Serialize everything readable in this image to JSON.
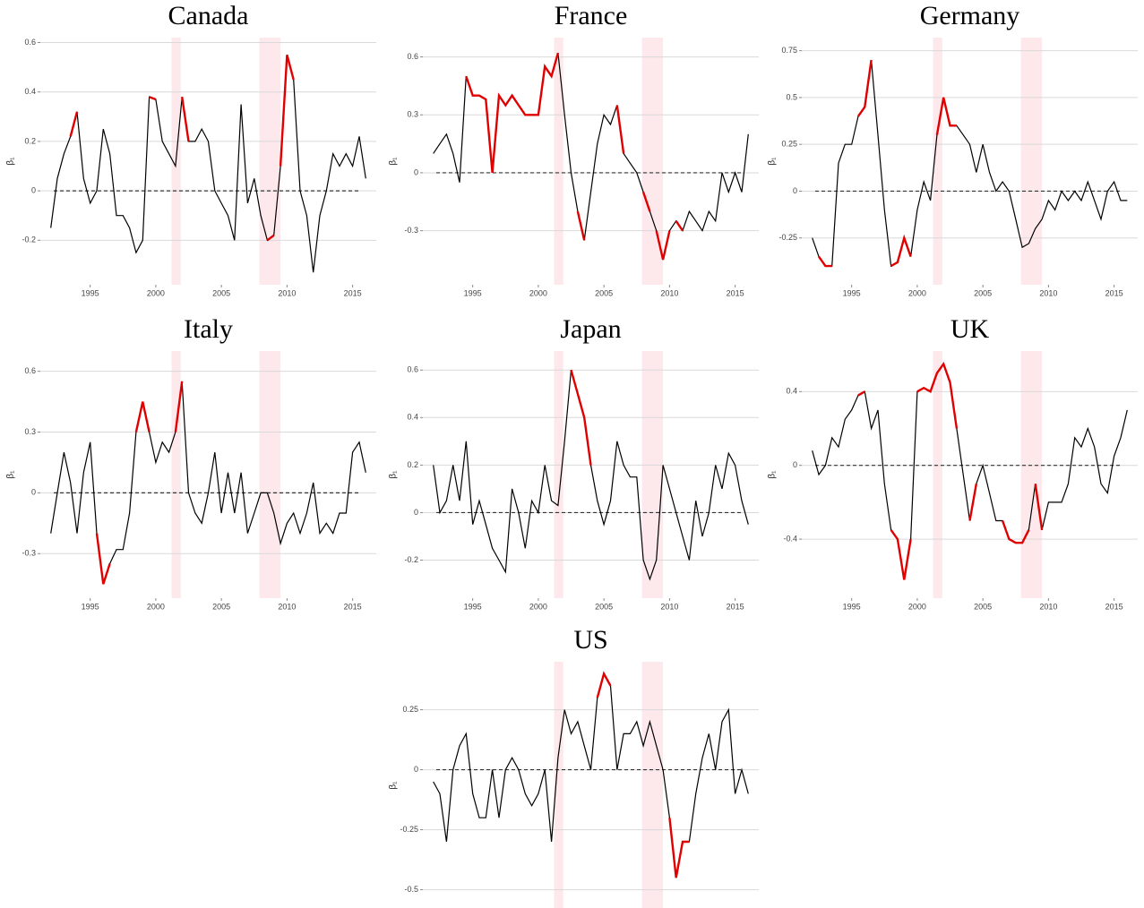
{
  "chart_data": [
    {
      "type": "line",
      "title": "Canada",
      "y_label": "β₁",
      "color": "#000000",
      "highlight_color": "#e00000",
      "shade_color": "#fde8ec",
      "grid": true,
      "hline": 0,
      "xlim": [
        1991.2,
        2016.8
      ],
      "xticks": [
        1995,
        2000,
        2005,
        2010,
        2015
      ],
      "ylim": [
        -0.38,
        0.62
      ],
      "yticks": [
        -0.2,
        0.0,
        0.2,
        0.4,
        0.6
      ],
      "shaded": [
        [
          2001.2,
          2001.9
        ],
        [
          2007.9,
          2009.5
        ]
      ],
      "highlight_ranges": [
        [
          1993.5,
          1994
        ],
        [
          1999.5,
          2000
        ],
        [
          2002,
          2002.5
        ],
        [
          2008.5,
          2009
        ],
        [
          2009.5,
          2010.5
        ]
      ],
      "x": [
        1992,
        1992.5,
        1993,
        1993.5,
        1994,
        1994.5,
        1995,
        1995.5,
        1996,
        1996.5,
        1997,
        1997.5,
        1998,
        1998.5,
        1999,
        1999.5,
        2000,
        2000.5,
        2001,
        2001.5,
        2002,
        2002.5,
        2003,
        2003.5,
        2004,
        2004.5,
        2005,
        2005.5,
        2006,
        2006.5,
        2007,
        2007.5,
        2008,
        2008.5,
        2009,
        2009.5,
        2010,
        2010.5,
        2011,
        2011.5,
        2012,
        2012.5,
        2013,
        2013.5,
        2014,
        2014.5,
        2015,
        2015.5,
        2016
      ],
      "values": [
        -0.15,
        0.05,
        0.15,
        0.22,
        0.32,
        0.05,
        -0.05,
        0.0,
        0.25,
        0.15,
        -0.1,
        -0.1,
        -0.15,
        -0.25,
        -0.2,
        0.38,
        0.37,
        0.2,
        0.15,
        0.1,
        0.38,
        0.2,
        0.2,
        0.25,
        0.2,
        0.0,
        -0.05,
        -0.1,
        -0.2,
        0.35,
        -0.05,
        0.05,
        -0.1,
        -0.2,
        -0.18,
        0.1,
        0.55,
        0.45,
        0.0,
        -0.1,
        -0.33,
        -0.1,
        0.0,
        0.15,
        0.1,
        0.15,
        0.1,
        0.22,
        0.05
      ]
    },
    {
      "type": "line",
      "title": "France",
      "y_label": "β₁",
      "color": "#000000",
      "highlight_color": "#e00000",
      "shade_color": "#fde8ec",
      "grid": true,
      "hline": 0,
      "xlim": [
        1991.2,
        2016.8
      ],
      "xticks": [
        1995,
        2000,
        2005,
        2010,
        2015
      ],
      "ylim": [
        -0.58,
        0.7
      ],
      "yticks": [
        -0.3,
        0.0,
        0.3,
        0.6
      ],
      "shaded": [
        [
          2001.2,
          2001.9
        ],
        [
          2007.9,
          2009.5
        ]
      ],
      "highlight_ranges": [
        [
          1994.5,
          2001.5
        ],
        [
          2003,
          2003.5
        ],
        [
          2006,
          2006.5
        ],
        [
          2008,
          2008.5
        ],
        [
          2009,
          2010
        ],
        [
          2010.5,
          2011
        ]
      ],
      "x": [
        1992,
        1992.5,
        1993,
        1993.5,
        1994,
        1994.5,
        1995,
        1995.5,
        1996,
        1996.5,
        1997,
        1997.5,
        1998,
        1998.5,
        1999,
        1999.5,
        2000,
        2000.5,
        2001,
        2001.5,
        2002,
        2002.5,
        2003,
        2003.5,
        2004,
        2004.5,
        2005,
        2005.5,
        2006,
        2006.5,
        2007,
        2007.5,
        2008,
        2008.5,
        2009,
        2009.5,
        2010,
        2010.5,
        2011,
        2011.5,
        2012,
        2012.5,
        2013,
        2013.5,
        2014,
        2014.5,
        2015,
        2015.5,
        2016
      ],
      "values": [
        0.1,
        0.15,
        0.2,
        0.1,
        -0.05,
        0.5,
        0.4,
        0.4,
        0.38,
        0.0,
        0.4,
        0.35,
        0.4,
        0.35,
        0.3,
        0.3,
        0.3,
        0.55,
        0.5,
        0.62,
        0.3,
        0.0,
        -0.2,
        -0.35,
        -0.1,
        0.15,
        0.3,
        0.25,
        0.35,
        0.1,
        0.05,
        0.0,
        -0.1,
        -0.2,
        -0.3,
        -0.45,
        -0.3,
        -0.25,
        -0.3,
        -0.2,
        -0.25,
        -0.3,
        -0.2,
        -0.25,
        0.0,
        -0.1,
        0.0,
        -0.1,
        0.2
      ]
    },
    {
      "type": "line",
      "title": "Germany",
      "y_label": "β₁",
      "color": "#000000",
      "highlight_color": "#e00000",
      "shade_color": "#fde8ec",
      "grid": true,
      "hline": 0,
      "xlim": [
        1991.2,
        2016.8
      ],
      "xticks": [
        1995,
        2000,
        2005,
        2010,
        2015
      ],
      "ylim": [
        -0.5,
        0.82
      ],
      "yticks": [
        -0.25,
        0.0,
        0.25,
        0.5,
        0.75
      ],
      "shaded": [
        [
          2001.2,
          2001.9
        ],
        [
          2007.9,
          2009.5
        ]
      ],
      "highlight_ranges": [
        [
          1992.5,
          1993.5
        ],
        [
          1995.5,
          1996.5
        ],
        [
          1998,
          1999.5
        ],
        [
          2001.5,
          2003
        ]
      ],
      "x": [
        1992,
        1992.5,
        1993,
        1993.5,
        1994,
        1994.5,
        1995,
        1995.5,
        1996,
        1996.5,
        1997,
        1997.5,
        1998,
        1998.5,
        1999,
        1999.5,
        2000,
        2000.5,
        2001,
        2001.5,
        2002,
        2002.5,
        2003,
        2003.5,
        2004,
        2004.5,
        2005,
        2005.5,
        2006,
        2006.5,
        2007,
        2007.5,
        2008,
        2008.5,
        2009,
        2009.5,
        2010,
        2010.5,
        2011,
        2011.5,
        2012,
        2012.5,
        2013,
        2013.5,
        2014,
        2014.5,
        2015,
        2015.5,
        2016
      ],
      "values": [
        -0.25,
        -0.35,
        -0.4,
        -0.4,
        0.15,
        0.25,
        0.25,
        0.4,
        0.45,
        0.7,
        0.3,
        -0.1,
        -0.4,
        -0.38,
        -0.25,
        -0.35,
        -0.1,
        0.05,
        -0.05,
        0.3,
        0.5,
        0.35,
        0.35,
        0.3,
        0.25,
        0.1,
        0.25,
        0.1,
        0.0,
        0.05,
        0.0,
        -0.15,
        -0.3,
        -0.28,
        -0.2,
        -0.15,
        -0.05,
        -0.1,
        0.0,
        -0.05,
        0.0,
        -0.05,
        0.05,
        -0.05,
        -0.15,
        0.0,
        0.05,
        -0.05,
        -0.05
      ]
    },
    {
      "type": "line",
      "title": "Italy",
      "y_label": "β₁",
      "color": "#000000",
      "highlight_color": "#e00000",
      "shade_color": "#fde8ec",
      "grid": true,
      "hline": 0,
      "xlim": [
        1991.2,
        2016.8
      ],
      "xticks": [
        1995,
        2000,
        2005,
        2010,
        2015
      ],
      "ylim": [
        -0.52,
        0.7
      ],
      "yticks": [
        -0.3,
        0.0,
        0.3,
        0.6
      ],
      "shaded": [
        [
          2001.2,
          2001.9
        ],
        [
          2007.9,
          2009.5
        ]
      ],
      "highlight_ranges": [
        [
          1995.5,
          1996.5
        ],
        [
          1998.5,
          1999.5
        ],
        [
          2001.5,
          2002
        ]
      ],
      "x": [
        1992,
        1992.5,
        1993,
        1993.5,
        1994,
        1994.5,
        1995,
        1995.5,
        1996,
        1996.5,
        1997,
        1997.5,
        1998,
        1998.5,
        1999,
        1999.5,
        2000,
        2000.5,
        2001,
        2001.5,
        2002,
        2002.5,
        2003,
        2003.5,
        2004,
        2004.5,
        2005,
        2005.5,
        2006,
        2006.5,
        2007,
        2007.5,
        2008,
        2008.5,
        2009,
        2009.5,
        2010,
        2010.5,
        2011,
        2011.5,
        2012,
        2012.5,
        2013,
        2013.5,
        2014,
        2014.5,
        2015,
        2015.5,
        2016
      ],
      "values": [
        -0.2,
        0.0,
        0.2,
        0.05,
        -0.2,
        0.1,
        0.25,
        -0.2,
        -0.45,
        -0.35,
        -0.28,
        -0.28,
        -0.1,
        0.3,
        0.45,
        0.3,
        0.15,
        0.25,
        0.2,
        0.3,
        0.55,
        0.0,
        -0.1,
        -0.15,
        0.0,
        0.2,
        -0.1,
        0.1,
        -0.1,
        0.1,
        -0.2,
        -0.1,
        0.0,
        0.0,
        -0.1,
        -0.25,
        -0.15,
        -0.1,
        -0.2,
        -0.1,
        0.05,
        -0.2,
        -0.15,
        -0.2,
        -0.1,
        -0.1,
        0.2,
        0.25,
        0.1
      ]
    },
    {
      "type": "line",
      "title": "Japan",
      "y_label": "β₁",
      "color": "#000000",
      "highlight_color": "#e00000",
      "shade_color": "#fde8ec",
      "grid": true,
      "hline": 0,
      "xlim": [
        1991.2,
        2016.8
      ],
      "xticks": [
        1995,
        2000,
        2005,
        2010,
        2015
      ],
      "ylim": [
        -0.36,
        0.68
      ],
      "yticks": [
        -0.2,
        0.0,
        0.2,
        0.4,
        0.6
      ],
      "shaded": [
        [
          2001.2,
          2001.9
        ],
        [
          2007.9,
          2009.5
        ]
      ],
      "highlight_ranges": [
        [
          2002.5,
          2004
        ]
      ],
      "x": [
        1992,
        1992.5,
        1993,
        1993.5,
        1994,
        1994.5,
        1995,
        1995.5,
        1996,
        1996.5,
        1997,
        1997.5,
        1998,
        1998.5,
        1999,
        1999.5,
        2000,
        2000.5,
        2001,
        2001.5,
        2002,
        2002.5,
        2003,
        2003.5,
        2004,
        2004.5,
        2005,
        2005.5,
        2006,
        2006.5,
        2007,
        2007.5,
        2008,
        2008.5,
        2009,
        2009.5,
        2010,
        2010.5,
        2011,
        2011.5,
        2012,
        2012.5,
        2013,
        2013.5,
        2014,
        2014.5,
        2015,
        2015.5,
        2016
      ],
      "values": [
        0.2,
        0.0,
        0.05,
        0.2,
        0.05,
        0.3,
        -0.05,
        0.05,
        -0.05,
        -0.15,
        -0.2,
        -0.25,
        0.1,
        0.0,
        -0.15,
        0.05,
        0.0,
        0.2,
        0.05,
        0.03,
        0.3,
        0.6,
        0.5,
        0.4,
        0.2,
        0.05,
        -0.05,
        0.05,
        0.3,
        0.2,
        0.15,
        0.15,
        -0.2,
        -0.28,
        -0.2,
        0.2,
        0.1,
        0.0,
        -0.1,
        -0.2,
        0.05,
        -0.1,
        0.0,
        0.2,
        0.1,
        0.25,
        0.2,
        0.05,
        -0.05
      ]
    },
    {
      "type": "line",
      "title": "UK",
      "y_label": "β₁",
      "color": "#000000",
      "highlight_color": "#e00000",
      "shade_color": "#fde8ec",
      "grid": true,
      "hline": 0,
      "xlim": [
        1991.2,
        2016.8
      ],
      "xticks": [
        1995,
        2000,
        2005,
        2010,
        2015
      ],
      "ylim": [
        -0.72,
        0.62
      ],
      "yticks": [
        -0.4,
        0.0,
        0.4
      ],
      "shaded": [
        [
          2001.2,
          2001.9
        ],
        [
          2007.9,
          2009.5
        ]
      ],
      "highlight_ranges": [
        [
          1995.5,
          1996
        ],
        [
          1998,
          1999.5
        ],
        [
          2000,
          2003
        ],
        [
          2004,
          2004.5
        ],
        [
          2006.5,
          2008.5
        ],
        [
          2009,
          2009.5
        ]
      ],
      "x": [
        1992,
        1992.5,
        1993,
        1993.5,
        1994,
        1994.5,
        1995,
        1995.5,
        1996,
        1996.5,
        1997,
        1997.5,
        1998,
        1998.5,
        1999,
        1999.5,
        2000,
        2000.5,
        2001,
        2001.5,
        2002,
        2002.5,
        2003,
        2003.5,
        2004,
        2004.5,
        2005,
        2005.5,
        2006,
        2006.5,
        2007,
        2007.5,
        2008,
        2008.5,
        2009,
        2009.5,
        2010,
        2010.5,
        2011,
        2011.5,
        2012,
        2012.5,
        2013,
        2013.5,
        2014,
        2014.5,
        2015,
        2015.5,
        2016
      ],
      "values": [
        0.08,
        -0.05,
        0.0,
        0.15,
        0.1,
        0.25,
        0.3,
        0.38,
        0.4,
        0.2,
        0.3,
        -0.1,
        -0.35,
        -0.4,
        -0.62,
        -0.4,
        0.4,
        0.42,
        0.4,
        0.5,
        0.55,
        0.45,
        0.2,
        -0.05,
        -0.3,
        -0.1,
        0.0,
        -0.15,
        -0.3,
        -0.3,
        -0.4,
        -0.42,
        -0.42,
        -0.35,
        -0.1,
        -0.35,
        -0.2,
        -0.2,
        -0.2,
        -0.1,
        0.15,
        0.1,
        0.2,
        0.1,
        -0.1,
        -0.15,
        0.05,
        0.15,
        0.3
      ]
    },
    {
      "type": "line",
      "title": "US",
      "y_label": "β₁",
      "color": "#000000",
      "highlight_color": "#e00000",
      "shade_color": "#fde8ec",
      "grid": true,
      "hline": 0,
      "xlim": [
        1991.2,
        2016.8
      ],
      "xticks": [
        1995,
        2000,
        2005,
        2010,
        2015
      ],
      "ylim": [
        -0.58,
        0.45
      ],
      "yticks": [
        -0.5,
        -0.25,
        0.0,
        0.25
      ],
      "shaded": [
        [
          2001.2,
          2001.9
        ],
        [
          2007.9,
          2009.5
        ]
      ],
      "highlight_ranges": [
        [
          2004.5,
          2005.5
        ],
        [
          2010,
          2011.5
        ]
      ],
      "x": [
        1992,
        1992.5,
        1993,
        1993.5,
        1994,
        1994.5,
        1995,
        1995.5,
        1996,
        1996.5,
        1997,
        1997.5,
        1998,
        1998.5,
        1999,
        1999.5,
        2000,
        2000.5,
        2001,
        2001.5,
        2002,
        2002.5,
        2003,
        2003.5,
        2004,
        2004.5,
        2005,
        2005.5,
        2006,
        2006.5,
        2007,
        2007.5,
        2008,
        2008.5,
        2009,
        2009.5,
        2010,
        2010.5,
        2011,
        2011.5,
        2012,
        2012.5,
        2013,
        2013.5,
        2014,
        2014.5,
        2015,
        2015.5,
        2016
      ],
      "values": [
        -0.05,
        -0.1,
        -0.3,
        0.0,
        0.1,
        0.15,
        -0.1,
        -0.2,
        -0.2,
        0.0,
        -0.2,
        0.0,
        0.05,
        0.0,
        -0.1,
        -0.15,
        -0.1,
        0.0,
        -0.3,
        0.05,
        0.25,
        0.15,
        0.2,
        0.1,
        0.0,
        0.3,
        0.4,
        0.35,
        0.0,
        0.15,
        0.15,
        0.2,
        0.1,
        0.2,
        0.1,
        0.0,
        -0.2,
        -0.45,
        -0.3,
        -0.3,
        -0.1,
        0.05,
        0.15,
        0.0,
        0.2,
        0.25,
        -0.1,
        0.0,
        -0.1
      ]
    }
  ]
}
